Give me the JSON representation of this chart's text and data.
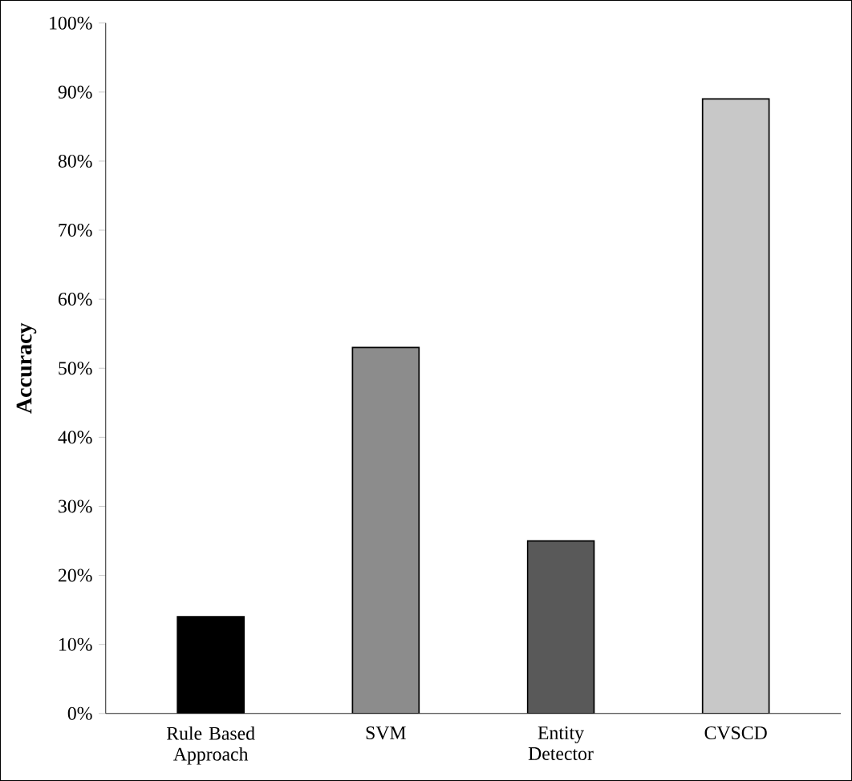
{
  "chart_data": {
    "type": "bar",
    "ylabel": "Accuracy",
    "categories": [
      "Rule Based Approach",
      "SVM",
      "Entity Detector",
      "CVSCD"
    ],
    "values": [
      14,
      53,
      25,
      89
    ],
    "colors": [
      "#000000",
      "#8c8c8c",
      "#595959",
      "#c8c8c8"
    ],
    "ylim": [
      0,
      100
    ],
    "yticks": [
      {
        "value": 0,
        "label": "0%"
      },
      {
        "value": 10,
        "label": "10%"
      },
      {
        "value": 20,
        "label": "20%"
      },
      {
        "value": 30,
        "label": "30%"
      },
      {
        "value": 40,
        "label": "40%"
      },
      {
        "value": 50,
        "label": "50%"
      },
      {
        "value": 60,
        "label": "60%"
      },
      {
        "value": 70,
        "label": "70%"
      },
      {
        "value": 80,
        "label": "80%"
      },
      {
        "value": 90,
        "label": "90%"
      },
      {
        "value": 100,
        "label": "100%"
      }
    ],
    "grid": false
  }
}
